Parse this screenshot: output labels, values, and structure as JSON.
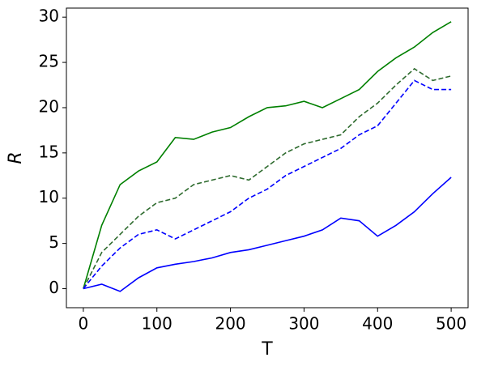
{
  "chart_data": {
    "type": "line",
    "xlabel": "T",
    "ylabel": "R",
    "x": [
      0,
      25,
      50,
      75,
      100,
      125,
      150,
      175,
      200,
      225,
      250,
      275,
      300,
      325,
      350,
      375,
      400,
      425,
      450,
      475,
      500
    ],
    "series": [
      {
        "color": "#008000",
        "dash": false,
        "values": [
          0,
          7,
          11.5,
          13,
          14,
          16.7,
          16.5,
          17.3,
          17.8,
          19,
          20,
          20.2,
          20.7,
          20,
          21,
          22,
          24,
          25.5,
          26.7,
          28.3,
          29.5
        ]
      },
      {
        "color": "#2e6b2e",
        "dash": true,
        "values": [
          0,
          4,
          6,
          8,
          9.5,
          10,
          11.5,
          12,
          12.5,
          12,
          13.5,
          15,
          16,
          16.5,
          17,
          19,
          20.5,
          22.5,
          24.3,
          23,
          23.5
        ]
      },
      {
        "color": "#0000ff",
        "dash": true,
        "values": [
          0,
          2.5,
          4.5,
          6,
          6.5,
          5.5,
          6.5,
          7.5,
          8.5,
          10,
          11,
          12.5,
          13.5,
          14.5,
          15.5,
          17,
          18,
          20.5,
          23,
          22,
          22
        ]
      },
      {
        "color": "#0000ff",
        "dash": false,
        "values": [
          0,
          0.5,
          -0.3,
          1.2,
          2.3,
          2.7,
          3,
          3.4,
          4,
          4.3,
          4.8,
          5.3,
          5.8,
          6.5,
          7.8,
          7.5,
          5.8,
          7,
          8.5,
          10.5,
          12.3
        ]
      }
    ],
    "xlim": [
      -23,
      523
    ],
    "ylim": [
      -2.1,
      31
    ],
    "xticks": [
      0,
      100,
      200,
      300,
      400,
      500
    ],
    "yticks": [
      0,
      5,
      10,
      15,
      20,
      25,
      30
    ]
  }
}
